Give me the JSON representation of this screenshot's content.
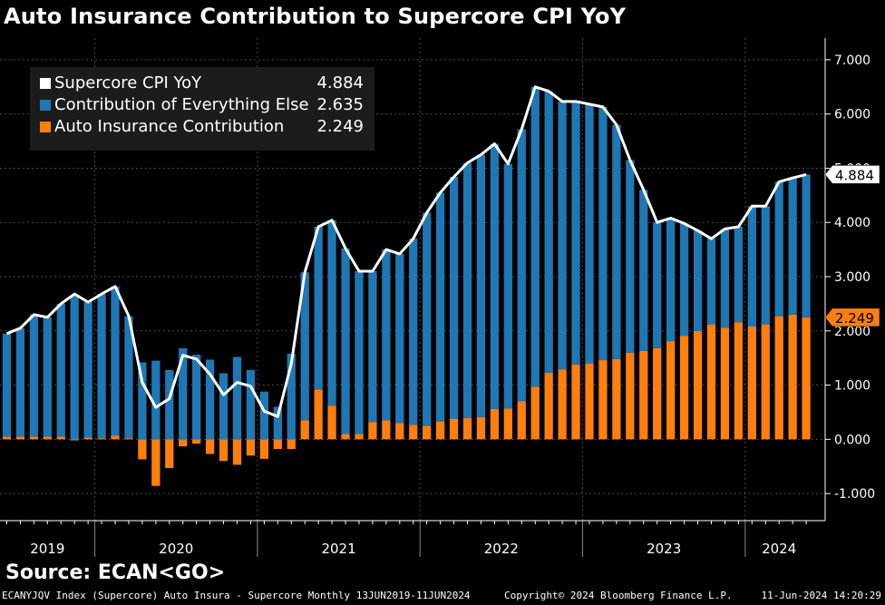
{
  "title": "Auto Insurance Contribution to Supercore CPI YoY",
  "source": "Source: ECAN<GO>",
  "footer": {
    "left": "ECANYJQV Index (Supercore) Auto Insura - Supercore  Monthly 13JUN2019-11JUN2024",
    "center": "Copyright© 2024 Bloomberg Finance L.P.",
    "right": "11-Jun-2024 14:20:29"
  },
  "colors": {
    "background": "#000000",
    "everything_else": "#1f77b4",
    "auto_insurance": "#ff7f0e",
    "supercore_line": "#ffffff",
    "grid": "#4a4a4a"
  },
  "chart_data": {
    "type": "bar",
    "stacked": true,
    "title": "Auto Insurance Contribution to Supercore CPI YoY",
    "ylim": [
      -1.5,
      7.4
    ],
    "yticks": [
      -1.0,
      0.0,
      1.0,
      2.0,
      3.0,
      4.0,
      5.0,
      6.0,
      7.0
    ],
    "ytick_labels": [
      "-1.000",
      "0.000",
      "1.000",
      "2.000",
      "3.000",
      "4.000",
      "5.000",
      "6.000",
      "7.000"
    ],
    "y_axis_side": "right",
    "grid": true,
    "legend_position": "top-left",
    "x_year_labels": [
      "2019",
      "2020",
      "2021",
      "2022",
      "2023",
      "2024"
    ],
    "x": [
      "Jun-19",
      "Jul-19",
      "Aug-19",
      "Sep-19",
      "Oct-19",
      "Nov-19",
      "Dec-19",
      "Jan-20",
      "Feb-20",
      "Mar-20",
      "Apr-20",
      "May-20",
      "Jun-20",
      "Jul-20",
      "Aug-20",
      "Sep-20",
      "Oct-20",
      "Nov-20",
      "Dec-20",
      "Jan-21",
      "Feb-21",
      "Mar-21",
      "Apr-21",
      "May-21",
      "Jun-21",
      "Jul-21",
      "Aug-21",
      "Sep-21",
      "Oct-21",
      "Nov-21",
      "Dec-21",
      "Jan-22",
      "Feb-22",
      "Mar-22",
      "Apr-22",
      "May-22",
      "Jun-22",
      "Jul-22",
      "Aug-22",
      "Sep-22",
      "Oct-22",
      "Nov-22",
      "Dec-22",
      "Jan-23",
      "Feb-23",
      "Mar-23",
      "Apr-23",
      "May-23",
      "Jun-23",
      "Jul-23",
      "Aug-23",
      "Sep-23",
      "Oct-23",
      "Nov-23",
      "Dec-23",
      "Jan-24",
      "Feb-24",
      "Mar-24",
      "Apr-24",
      "May-24"
    ],
    "series": [
      {
        "name": "Supercore CPI YoY",
        "type": "line",
        "latest": "4.884",
        "values": [
          1.95,
          2.05,
          2.3,
          2.25,
          2.5,
          2.68,
          2.53,
          2.68,
          2.82,
          2.27,
          1.05,
          0.59,
          0.75,
          1.55,
          1.48,
          1.2,
          0.82,
          1.05,
          0.98,
          0.52,
          0.42,
          1.4,
          3.08,
          3.92,
          4.04,
          3.52,
          3.1,
          3.1,
          3.5,
          3.42,
          3.7,
          4.18,
          4.55,
          4.84,
          5.1,
          5.25,
          5.45,
          5.08,
          5.72,
          6.5,
          6.42,
          6.23,
          6.23,
          6.18,
          6.13,
          5.8,
          5.15,
          4.6,
          4.0,
          4.08,
          3.98,
          3.85,
          3.7,
          3.88,
          3.92,
          4.3,
          4.3,
          4.75,
          4.82,
          4.884
        ]
      },
      {
        "name": "Contribution of Everything Else",
        "type": "bar",
        "latest": "2.635",
        "values": [
          1.9,
          2.0,
          2.25,
          2.2,
          2.45,
          2.65,
          2.5,
          2.66,
          2.75,
          2.25,
          1.42,
          1.45,
          1.28,
          1.68,
          1.56,
          1.47,
          1.22,
          1.52,
          1.28,
          0.88,
          0.6,
          1.58,
          2.73,
          3.0,
          3.42,
          3.42,
          3.0,
          2.78,
          3.15,
          3.12,
          3.43,
          3.93,
          4.22,
          4.46,
          4.71,
          4.84,
          4.89,
          4.51,
          5.02,
          5.53,
          5.19,
          4.94,
          4.85,
          4.78,
          4.67,
          4.32,
          3.55,
          2.97,
          2.32,
          2.27,
          2.07,
          1.85,
          1.58,
          1.82,
          1.76,
          2.22,
          2.18,
          2.48,
          2.52,
          2.635
        ]
      },
      {
        "name": "Auto Insurance Contribution",
        "type": "bar",
        "latest": "2.249",
        "values": [
          0.05,
          0.05,
          0.05,
          0.05,
          0.05,
          -0.02,
          0.03,
          0.02,
          0.07,
          0.02,
          -0.37,
          -0.86,
          -0.53,
          -0.13,
          -0.08,
          -0.27,
          -0.4,
          -0.47,
          -0.3,
          -0.36,
          -0.18,
          -0.18,
          0.35,
          0.92,
          0.62,
          0.1,
          0.1,
          0.32,
          0.35,
          0.3,
          0.27,
          0.25,
          0.33,
          0.38,
          0.39,
          0.41,
          0.56,
          0.57,
          0.7,
          0.97,
          1.23,
          1.29,
          1.38,
          1.4,
          1.46,
          1.48,
          1.6,
          1.63,
          1.68,
          1.81,
          1.91,
          2.0,
          2.12,
          2.06,
          2.16,
          2.08,
          2.12,
          2.27,
          2.3,
          2.249
        ]
      }
    ]
  }
}
